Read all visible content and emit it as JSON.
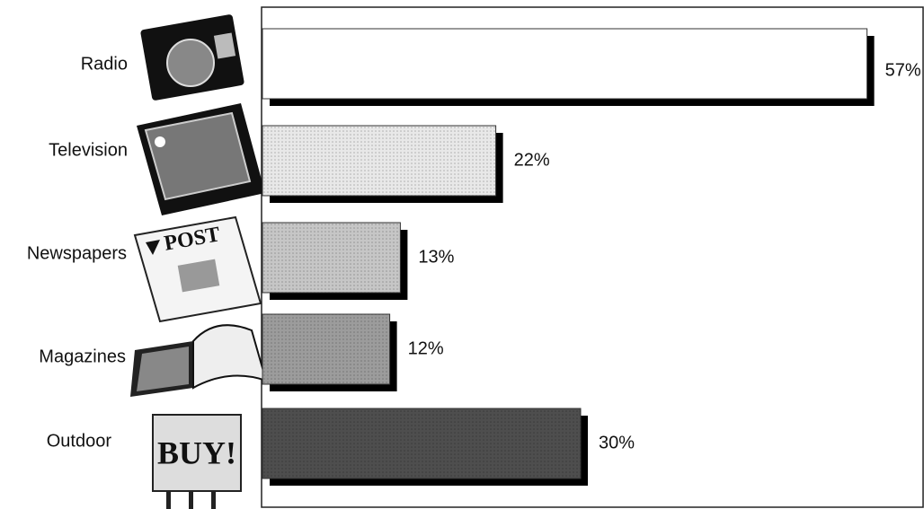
{
  "chart_data": {
    "type": "hbar",
    "categories": [
      "Radio",
      "Television",
      "Newspapers",
      "Magazines",
      "Outdoor"
    ],
    "values": [
      57,
      22,
      13,
      12,
      30
    ],
    "value_labels": [
      "57%",
      "22%",
      "13%",
      "12%",
      "30%"
    ],
    "colors": [
      "#ffffff",
      "#e8e8e8",
      "#c6c6c6",
      "#9c9c9c",
      "#4e4e4e"
    ],
    "icon_texts": [
      "POST",
      "BUY!"
    ]
  }
}
